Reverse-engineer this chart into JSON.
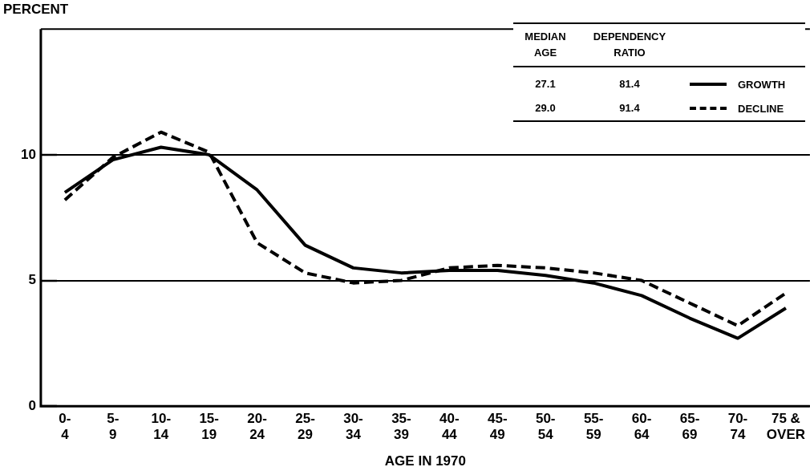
{
  "chart_data": {
    "type": "line",
    "ylabel": "PERCENT",
    "xlabel": "AGE IN 1970",
    "categories": [
      "0-\n4",
      "5-\n9",
      "10-\n14",
      "15-\n19",
      "20-\n24",
      "25-\n29",
      "30-\n34",
      "35-\n39",
      "40-\n44",
      "45-\n49",
      "50-\n54",
      "55-\n59",
      "60-\n64",
      "65-\n69",
      "70-\n74",
      "75 &\nOVER"
    ],
    "series": [
      {
        "name": "GROWTH",
        "color": "#000000",
        "line_style": "solid",
        "values": [
          8.5,
          9.8,
          10.3,
          10.0,
          8.6,
          6.4,
          5.5,
          5.3,
          5.4,
          5.4,
          5.2,
          4.9,
          4.4,
          3.5,
          2.7,
          3.9
        ]
      },
      {
        "name": "DECLINE",
        "color": "#000000",
        "line_style": "dashed",
        "values": [
          8.2,
          9.9,
          10.9,
          10.1,
          6.5,
          5.3,
          4.9,
          5.0,
          5.5,
          5.6,
          5.5,
          5.3,
          5.0,
          4.1,
          3.2,
          4.5
        ]
      }
    ],
    "ylim": [
      0,
      15
    ],
    "yticks": [
      0,
      5,
      10
    ],
    "grid": "y",
    "legend": "top right",
    "marker": "none",
    "annotations": [
      "MEDIAN\nAGE",
      "DEPENDENCY\nRATIO",
      "27.1",
      "81.4",
      "29.0",
      "91.4"
    ]
  }
}
